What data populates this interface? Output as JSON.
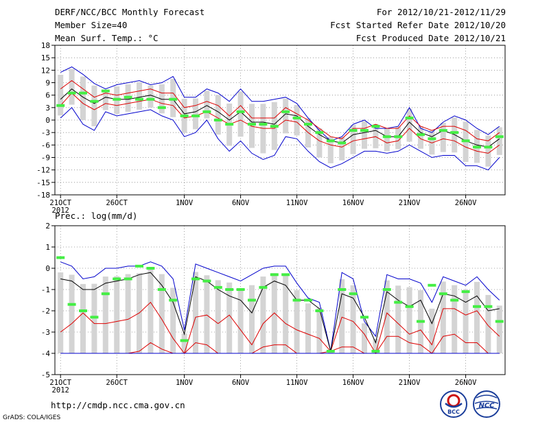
{
  "header": {
    "title": "DERF/NCC/BCC Monthly Forecast",
    "member_size": "Member Size=40",
    "variable": "Mean Surf. Temp.: °C",
    "for_period": "For 2012/10/21-2012/11/29",
    "fcst_started": "Fcst Started Refer Date 2012/10/20",
    "fcst_produced": "Fcst Produced Date 2012/10/21"
  },
  "footer": {
    "url": "http://cmdp.ncc.cma.gov.cn",
    "grads_credit": "GrADS: COLA/IGES",
    "logo_bcc_label": "BCC",
    "logo_ncc_label": "NCC"
  },
  "colors": {
    "box": "#d4d4d4",
    "upper_lower": "#0000cc",
    "quartile": "#dd0000",
    "mean": "#000000",
    "observed": "#44ee44"
  },
  "chart_data": [
    {
      "type": "line",
      "title": "Mean Surf. Temp.: °C",
      "ylim": [
        -18,
        18
      ],
      "yticks": [
        18,
        15,
        12,
        9,
        6,
        3,
        0,
        -3,
        -6,
        -9,
        -12,
        -15,
        -18
      ],
      "x_tick_labels": [
        "21OCT",
        "26OCT",
        "1NOV",
        "6NOV",
        "11NOV",
        "16NOV",
        "21NOV",
        "26NOV"
      ],
      "x_tick_index": [
        0,
        5,
        11,
        16,
        21,
        26,
        31,
        36
      ],
      "year_label": "2012",
      "days": 40,
      "series": [
        {
          "name": "upper",
          "values": [
            11.5,
            12.8,
            11,
            8.8,
            7.5,
            8.5,
            9,
            9.5,
            8.5,
            9,
            10.5,
            5.5,
            5.5,
            7.5,
            6.5,
            4.5,
            7.5,
            4.5,
            4.5,
            5,
            5.5,
            4,
            0.5,
            -2.5,
            -5,
            -4,
            -1,
            0,
            -2,
            -2,
            -1.5,
            3,
            -2,
            -3,
            -0.5,
            1,
            0,
            -2,
            -3.5,
            -1.5
          ]
        },
        {
          "name": "q3",
          "values": [
            7.5,
            9.5,
            7.5,
            5.5,
            6.5,
            6,
            6.5,
            7,
            7.5,
            6.5,
            6.5,
            3,
            3.5,
            4.5,
            3.5,
            1,
            3.5,
            0.5,
            0.5,
            0.5,
            3,
            1.5,
            0,
            -2,
            -4,
            -4.5,
            -2,
            -2,
            -1,
            -2,
            -2,
            1,
            -1.5,
            -2.5,
            -1.5,
            -1.5,
            -2.5,
            -4.5,
            -5,
            -3
          ]
        },
        {
          "name": "mean",
          "values": [
            5,
            7.5,
            5.5,
            4,
            5.5,
            5,
            5,
            5.5,
            6,
            5,
            5,
            1.5,
            2,
            3.5,
            2,
            0,
            2,
            -0.5,
            -0.5,
            -1,
            1.5,
            1,
            -1.5,
            -3.5,
            -5,
            -5.5,
            -3.5,
            -3,
            -2.5,
            -4,
            -4,
            -0.5,
            -3,
            -4,
            -2.5,
            -3.5,
            -5,
            -6,
            -6.5,
            -4.5
          ]
        },
        {
          "name": "q1",
          "values": [
            3.5,
            6.5,
            4,
            2.5,
            4,
            3.5,
            4,
            4.5,
            5,
            4,
            3.5,
            0.5,
            1,
            2,
            0.5,
            -1,
            0,
            -1.5,
            -2,
            -2,
            0,
            -0.5,
            -3,
            -5,
            -6,
            -6.5,
            -5,
            -4.5,
            -4,
            -5.5,
            -5,
            -2,
            -4.5,
            -5.5,
            -4.5,
            -5,
            -6.5,
            -7.5,
            -8,
            -6
          ]
        },
        {
          "name": "lower",
          "values": [
            0.5,
            3,
            -1,
            -2.5,
            2,
            1,
            1.5,
            2,
            2.5,
            1,
            0,
            -4,
            -3,
            0,
            -4.5,
            -7.5,
            -5,
            -8,
            -9.5,
            -8.5,
            -4,
            -4.5,
            -7.5,
            -10,
            -11.5,
            -10.5,
            -9,
            -7.5,
            -7.5,
            -8,
            -7.5,
            -6,
            -7.5,
            -9,
            -8.5,
            -8.5,
            -11,
            -11,
            -12,
            -9
          ]
        },
        {
          "name": "observed",
          "values": [
            3.5,
            6.5,
            6.5,
            4.5,
            7,
            5,
            5.5,
            5,
            5,
            3,
            5,
            1,
            1,
            2,
            0,
            -1,
            2,
            -1,
            -1,
            -1.5,
            2,
            0.5,
            -1,
            -3,
            -5,
            -5.5,
            -2.5,
            -2.5,
            -1.5,
            -4,
            -4,
            0.5,
            -3.5,
            -4.5,
            -2.5,
            -3,
            -5,
            -6.5,
            -6.5,
            -4
          ]
        }
      ]
    },
    {
      "type": "line",
      "title": "Prec.: log(mm/d)",
      "ylim": [
        -5,
        2
      ],
      "yticks": [
        2,
        1,
        0,
        -1,
        -2,
        -3,
        -4,
        -5
      ],
      "x_tick_labels": [
        "21OCT",
        "26OCT",
        "1NOV",
        "6NOV",
        "11NOV",
        "16NOV",
        "21NOV",
        "26NOV"
      ],
      "x_tick_index": [
        0,
        5,
        11,
        16,
        21,
        26,
        31,
        36
      ],
      "year_label": "2012",
      "days": 40,
      "series": [
        {
          "name": "upper",
          "values": [
            0.3,
            0.1,
            -0.5,
            -0.4,
            0,
            0,
            0.1,
            0.1,
            0.3,
            0.1,
            -0.5,
            -2.9,
            0.2,
            0,
            -0.2,
            -0.4,
            -0.6,
            -0.3,
            0,
            0.1,
            0.1,
            -0.7,
            -1.4,
            -1.6,
            -3.9,
            -0.2,
            -0.5,
            -2.5,
            -3.2,
            -0.3,
            -0.5,
            -0.5,
            -0.7,
            -1.6,
            -0.4,
            -0.6,
            -0.8,
            -0.4,
            -1,
            -1.5
          ]
        },
        {
          "name": "mean",
          "values": [
            -0.5,
            -0.6,
            -1,
            -1,
            -0.7,
            -0.6,
            -0.5,
            -0.3,
            -0.2,
            -0.8,
            -1.6,
            -3.1,
            -0.4,
            -0.6,
            -1,
            -1.3,
            -1.5,
            -2.1,
            -0.9,
            -0.6,
            -0.8,
            -1.5,
            -1.5,
            -1.9,
            -3.9,
            -1.2,
            -1.4,
            -2.3,
            -3.5,
            -1.1,
            -1.5,
            -1.8,
            -1.5,
            -2.6,
            -1.2,
            -1.3,
            -1.6,
            -1.3,
            -2,
            -1.9
          ]
        },
        {
          "name": "q3",
          "values": [
            -3,
            -2.6,
            -2.1,
            -2.6,
            -2.6,
            -2.5,
            -2.4,
            -2.1,
            -1.6,
            -2.4,
            -3.3,
            -4,
            -2.3,
            -2.2,
            -2.6,
            -2.2,
            -2.9,
            -3.6,
            -2.6,
            -2.1,
            -2.6,
            -2.9,
            -3.1,
            -3.3,
            -3.9,
            -2.3,
            -2.5,
            -3.1,
            -4,
            -2.1,
            -2.6,
            -3.1,
            -2.9,
            -3.6,
            -1.9,
            -1.9,
            -2.2,
            -2,
            -2.7,
            -3.2
          ]
        },
        {
          "name": "q1",
          "values": [
            -4,
            -4,
            -4,
            -4,
            -4,
            -4,
            -4,
            -3.9,
            -3.5,
            -3.8,
            -4,
            -4,
            -3.5,
            -3.6,
            -4,
            -4,
            -4,
            -4,
            -3.7,
            -3.6,
            -3.6,
            -4,
            -4,
            -4,
            -3.9,
            -3.7,
            -3.7,
            -4,
            -4,
            -3.2,
            -3.2,
            -3.5,
            -3.6,
            -4,
            -3.2,
            -3.1,
            -3.5,
            -3.5,
            -4,
            -4
          ]
        },
        {
          "name": "lower",
          "values": [
            -4,
            -4,
            -4,
            -4,
            -4,
            -4,
            -4,
            -4,
            -4,
            -4,
            -4,
            -4,
            -4,
            -4,
            -4,
            -4,
            -4,
            -4,
            -4,
            -4,
            -4,
            -4,
            -4,
            -4,
            -4,
            -4,
            -4,
            -4,
            -4,
            -4,
            -4,
            -4,
            -4,
            -4,
            -4,
            -4,
            -4,
            -4,
            -4,
            -4
          ]
        },
        {
          "name": "observed",
          "values": [
            0.5,
            -1.7,
            -2,
            -2.3,
            -1.2,
            -0.5,
            -0.5,
            0.1,
            0,
            -1,
            -1.5,
            -3.4,
            -0.5,
            -0.6,
            -0.9,
            -1,
            -1,
            -1.5,
            -0.9,
            -0.3,
            -0.3,
            -1.5,
            -1.5,
            -2,
            -3.9,
            -1,
            -1.2,
            -2.3,
            -3.9,
            -1,
            -1.6,
            -1.8,
            -2.5,
            -0.8,
            -1.2,
            -1.5,
            -1.1,
            -1.8,
            -1.8,
            -2.5
          ]
        }
      ]
    }
  ]
}
